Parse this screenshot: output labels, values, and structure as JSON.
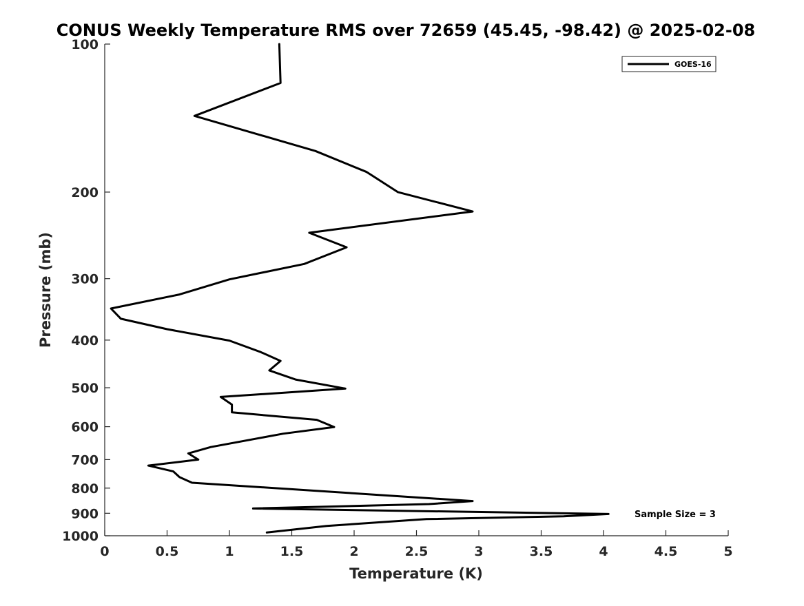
{
  "chart_data": {
    "type": "line",
    "title": "CONUS Weekly Temperature RMS over 72659 (45.45, -98.42) @ 2025-02-08",
    "xlabel": "Temperature (K)",
    "ylabel": "Pressure (mb)",
    "xlim": [
      0,
      5
    ],
    "ylim": [
      100,
      1000
    ],
    "yscale": "log",
    "y_reversed": true,
    "grid": false,
    "legend_position": "top-right",
    "x_ticks": [
      "0",
      "0.5",
      "1",
      "1.5",
      "2",
      "2.5",
      "3",
      "3.5",
      "4",
      "4.5",
      "5"
    ],
    "y_ticks": [
      "100",
      "200",
      "300",
      "400",
      "500",
      "600",
      "700",
      "800",
      "900",
      "1000"
    ],
    "series": [
      {
        "name": "GOES-16",
        "color": "#000000",
        "points": [
          [
            1.4,
            100
          ],
          [
            1.41,
            120
          ],
          [
            0.72,
            140
          ],
          [
            1.69,
            165
          ],
          [
            2.1,
            182
          ],
          [
            2.35,
            200
          ],
          [
            2.95,
            219
          ],
          [
            1.64,
            242
          ],
          [
            1.94,
            259
          ],
          [
            1.6,
            280
          ],
          [
            1.0,
            301
          ],
          [
            0.6,
            323
          ],
          [
            0.05,
            345
          ],
          [
            0.13,
            362
          ],
          [
            0.5,
            380
          ],
          [
            1.0,
            401
          ],
          [
            1.25,
            423
          ],
          [
            1.41,
            441
          ],
          [
            1.32,
            461
          ],
          [
            1.53,
            481
          ],
          [
            1.93,
            502
          ],
          [
            0.93,
            522
          ],
          [
            1.02,
            541
          ],
          [
            1.02,
            561
          ],
          [
            1.7,
            581
          ],
          [
            1.84,
            601
          ],
          [
            1.43,
            620
          ],
          [
            0.85,
            660
          ],
          [
            0.67,
            680
          ],
          [
            0.75,
            700
          ],
          [
            0.35,
            720
          ],
          [
            0.55,
            740
          ],
          [
            0.6,
            760
          ],
          [
            0.7,
            780
          ],
          [
            2.95,
            850
          ],
          [
            2.6,
            862
          ],
          [
            1.19,
            880
          ],
          [
            4.04,
            903
          ],
          [
            3.68,
            913
          ],
          [
            2.58,
            925
          ],
          [
            1.78,
            955
          ],
          [
            1.3,
            985
          ]
        ]
      }
    ],
    "annotations": [
      "Sample Size = 3"
    ]
  }
}
